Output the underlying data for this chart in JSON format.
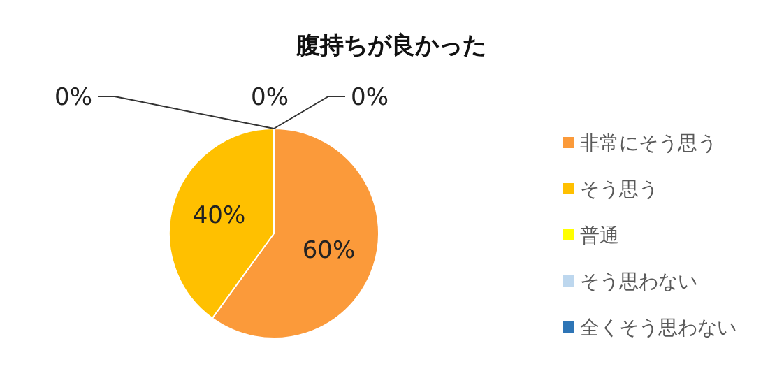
{
  "chart_data": {
    "type": "pie",
    "title": "腹持ちが良かった",
    "categories": [
      "非常にそう思う",
      "そう思う",
      "普通",
      "そう思わない",
      "全くそう思わない"
    ],
    "values": [
      60,
      40,
      0,
      0,
      0
    ],
    "colors": [
      "#fb9a3a",
      "#ffc000",
      "#ffff00",
      "#bdd7ee",
      "#2e75b6"
    ],
    "value_labels": [
      "60%",
      "40%",
      "0%",
      "0%",
      "0%"
    ],
    "legend": "right"
  }
}
